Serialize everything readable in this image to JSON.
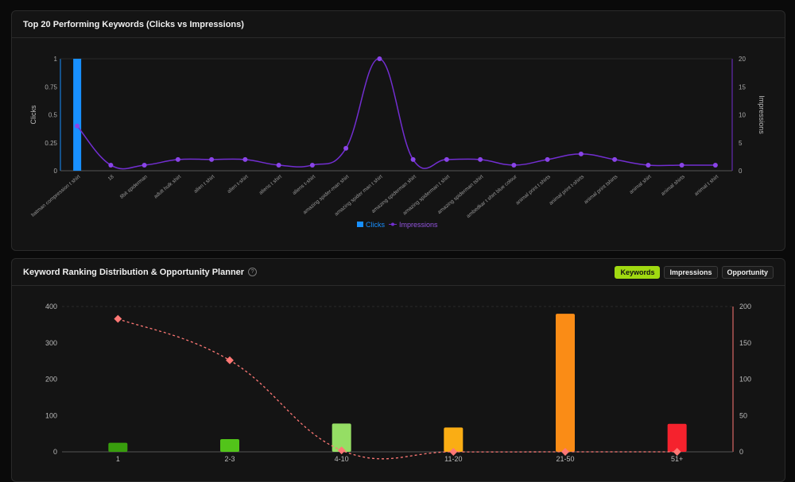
{
  "chart_data": [
    {
      "type": "bar+line",
      "title": "Top 20 Performing Keywords (Clicks vs Impressions)",
      "categories": [
        "batman compression t shirt",
        "18",
        "8bit spiderman",
        "adult hulk shirt",
        "alien t shirt",
        "alien t-shirt",
        "aliens t shirt",
        "aliens t-shirt",
        "amazing spider-man shirt",
        "amazing spider man t shirt",
        "amazing spiderman shirt",
        "amazing spiderman t shirt",
        "amazing spiderman tshirt",
        "ambedkar t shirt blue colour",
        "animal print t shirts",
        "animal print t-shirts",
        "animal print tshirts",
        "animal shirt",
        "animal shirts",
        "animal t shirt"
      ],
      "series": [
        {
          "name": "Clicks",
          "type": "bar",
          "axis": "left",
          "color": "#1890ff",
          "values": [
            1,
            0,
            0,
            0,
            0,
            0,
            0,
            0,
            0,
            0,
            0,
            0,
            0,
            0,
            0,
            0,
            0,
            0,
            0,
            0
          ]
        },
        {
          "name": "Impressions",
          "type": "line",
          "axis": "right",
          "color": "#722ed1",
          "values": [
            8,
            1,
            1,
            2,
            2,
            2,
            1,
            1,
            4,
            20,
            2,
            2,
            2,
            1,
            2,
            3,
            2,
            1,
            1,
            1
          ]
        }
      ],
      "ylabel": "Clicks",
      "y2label": "Impressions",
      "ylim": [
        0,
        1
      ],
      "yticks": [
        "0",
        "0.25",
        "0.5",
        "0.75",
        "1"
      ],
      "y2lim": [
        0,
        20
      ],
      "y2ticks": [
        "0",
        "5",
        "10",
        "15",
        "20"
      ],
      "legend": "bottom-center"
    },
    {
      "type": "bar+line",
      "title": "Keyword Ranking Distribution & Opportunity Planner",
      "buttons": [
        "Keywords",
        "Impressions",
        "Opportunity"
      ],
      "active_button": "Keywords",
      "categories": [
        "1",
        "2-3",
        "4-10",
        "11-20",
        "21-50",
        "51+"
      ],
      "series": [
        {
          "name": "Keywords",
          "type": "bar",
          "axis": "left",
          "colors": [
            "#389e0d",
            "#52c41a",
            "#95de64",
            "#faad14",
            "#fa8c16",
            "#f5222d"
          ],
          "values": [
            25,
            35,
            78,
            67,
            380,
            77
          ]
        },
        {
          "name": "Opportunity",
          "type": "line",
          "axis": "right",
          "color": "#ff7875",
          "dashed": true,
          "values": [
            183,
            126,
            2,
            0,
            0,
            0
          ]
        }
      ],
      "ylim": [
        0,
        400
      ],
      "yticks": [
        "0",
        "100",
        "200",
        "300",
        "400"
      ],
      "y2lim": [
        0,
        200
      ],
      "y2ticks": [
        "0",
        "50",
        "100",
        "150",
        "200"
      ]
    }
  ]
}
